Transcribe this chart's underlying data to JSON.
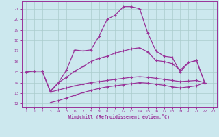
{
  "xlabel": "Windchill (Refroidissement éolien,°C)",
  "bg_color": "#cce8ee",
  "grid_color": "#aacccc",
  "line_color": "#993399",
  "xlim": [
    -0.5,
    23.5
  ],
  "ylim": [
    11.7,
    21.7
  ],
  "yticks": [
    12,
    13,
    14,
    15,
    16,
    17,
    18,
    19,
    20,
    21
  ],
  "xticks": [
    0,
    1,
    2,
    3,
    4,
    5,
    6,
    7,
    8,
    9,
    10,
    11,
    12,
    13,
    14,
    15,
    16,
    17,
    18,
    19,
    20,
    21,
    22,
    23
  ],
  "y_main": [
    15.0,
    15.1,
    15.1,
    13.1,
    14.0,
    15.2,
    17.1,
    17.0,
    17.1,
    18.4,
    20.0,
    20.4,
    21.2,
    21.2,
    21.0,
    18.7,
    17.0,
    16.5,
    16.4,
    15.0,
    15.9,
    16.1,
    14.0,
    null
  ],
  "y_upper": [
    15.0,
    15.1,
    15.1,
    13.2,
    14.0,
    14.5,
    15.1,
    15.5,
    16.0,
    16.3,
    16.5,
    16.8,
    17.0,
    17.2,
    17.3,
    16.9,
    16.1,
    16.0,
    15.8,
    15.2,
    15.9,
    16.1,
    14.0,
    null
  ],
  "y_mid": [
    null,
    null,
    null,
    13.1,
    13.3,
    13.5,
    13.7,
    13.85,
    14.0,
    14.1,
    14.2,
    14.3,
    14.4,
    14.5,
    14.55,
    14.5,
    14.4,
    14.3,
    14.2,
    14.1,
    14.15,
    14.2,
    14.0,
    null
  ],
  "y_low": [
    null,
    null,
    null,
    12.1,
    12.3,
    12.55,
    12.8,
    13.05,
    13.25,
    13.45,
    13.6,
    13.7,
    13.8,
    13.9,
    14.0,
    13.95,
    13.85,
    13.75,
    13.6,
    13.5,
    13.6,
    13.7,
    14.0,
    null
  ]
}
